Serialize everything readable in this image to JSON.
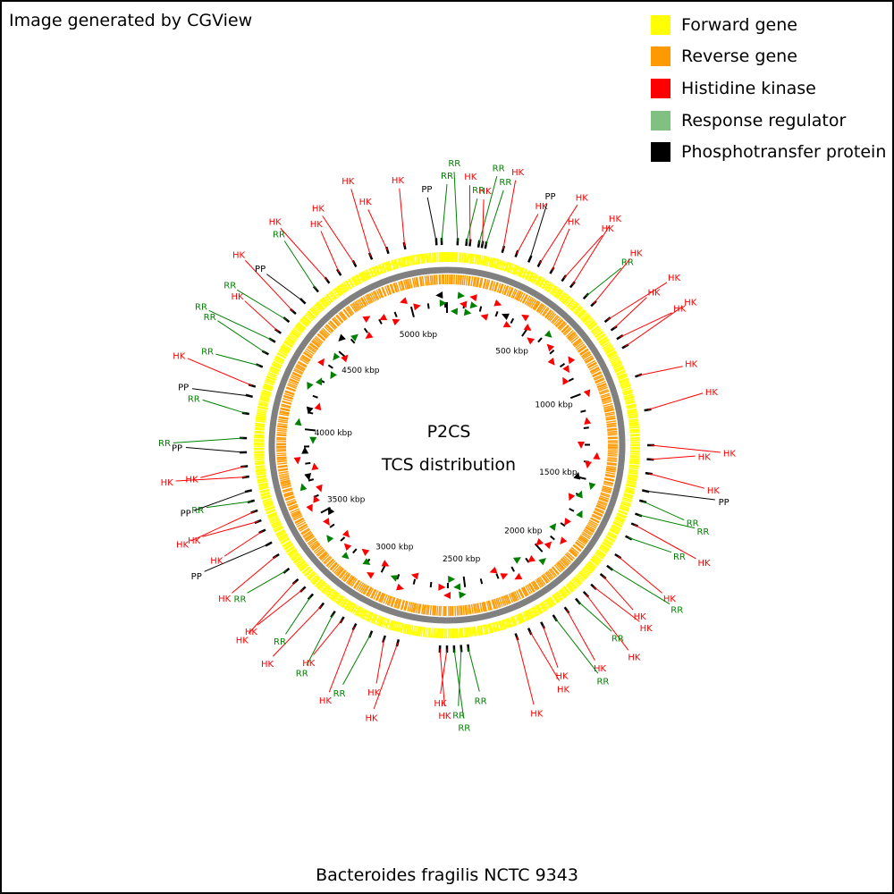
{
  "header": {
    "credit": "Image generated by CGView"
  },
  "legend": {
    "items": [
      {
        "label": "Forward gene",
        "color": "#ffff00"
      },
      {
        "label": "Reverse gene",
        "color": "#ff9900"
      },
      {
        "label": "Histidine kinase",
        "color": "#ff0000"
      },
      {
        "label": "Response regulator",
        "color": "#80c080"
      },
      {
        "label": "Phosphotransfer protein",
        "color": "#000000"
      }
    ]
  },
  "center": {
    "title": "P2CS",
    "subtitle": "TCS distribution"
  },
  "footer": {
    "caption": "Bacteroides fragilis NCTC 9343"
  },
  "colors": {
    "hk": "#ff0000",
    "rr": "#008000",
    "pp": "#000000",
    "backbone": "#808080",
    "forward": "#ffff00",
    "reverse": "#ff9900"
  },
  "map": {
    "genome_length_kbp": 5210,
    "scale_labels": [
      {
        "text": "500 kbp",
        "kbp": 500
      },
      {
        "text": "1000 kbp",
        "kbp": 1000
      },
      {
        "text": "1500 kbp",
        "kbp": 1500
      },
      {
        "text": "2000 kbp",
        "kbp": 2000
      },
      {
        "text": "2500 kbp",
        "kbp": 2500
      },
      {
        "text": "3000 kbp",
        "kbp": 3000
      },
      {
        "text": "3500 kbp",
        "kbp": 3500
      },
      {
        "text": "4000 kbp",
        "kbp": 4000
      },
      {
        "text": "4500 kbp",
        "kbp": 4500
      },
      {
        "text": "5000 kbp",
        "kbp": 5000
      }
    ],
    "features": [
      {
        "label": "PP",
        "type": "pp",
        "angle": -3
      },
      {
        "label": "RR",
        "type": "rr",
        "angle": -1.5
      },
      {
        "label": "RR",
        "type": "rr",
        "angle": 3
      },
      {
        "label": "RR",
        "type": "rr",
        "angle": 5.5
      },
      {
        "label": "HK",
        "type": "hk",
        "angle": 6.5
      },
      {
        "label": "RR",
        "type": "rr",
        "angle": 9
      },
      {
        "label": "HK",
        "type": "hk",
        "angle": 10
      },
      {
        "label": "RR",
        "type": "rr",
        "angle": 11
      },
      {
        "label": "HK",
        "type": "hk",
        "angle": 16
      },
      {
        "label": "HK",
        "type": "hk",
        "angle": 20
      },
      {
        "label": "PP",
        "type": "pp",
        "angle": 24
      },
      {
        "label": "HK",
        "type": "hk",
        "angle": 27
      },
      {
        "label": "HK",
        "type": "hk",
        "angle": 31
      },
      {
        "label": "HK",
        "type": "hk",
        "angle": 35
      },
      {
        "label": "HK",
        "type": "hk",
        "angle": 38
      },
      {
        "label": "RR",
        "type": "rr",
        "angle": 43
      },
      {
        "label": "HK",
        "type": "hk",
        "angle": 46
      },
      {
        "label": "HK",
        "type": "hk",
        "angle": 52
      },
      {
        "label": "HK",
        "type": "hk",
        "angle": 55
      },
      {
        "label": "HK",
        "type": "hk",
        "angle": 58
      },
      {
        "label": "HK",
        "type": "hk",
        "angle": 61
      },
      {
        "label": "HK",
        "type": "hk",
        "angle": 70
      },
      {
        "label": "HK",
        "type": "hk",
        "angle": 80
      },
      {
        "label": "HK",
        "type": "hk",
        "angle": 90
      },
      {
        "label": "HK",
        "type": "hk",
        "angle": 94
      },
      {
        "label": "HK",
        "type": "hk",
        "angle": 98
      },
      {
        "label": "PP",
        "type": "pp",
        "angle": 103
      },
      {
        "label": "RR",
        "type": "rr",
        "angle": 106
      },
      {
        "label": "RR",
        "type": "rr",
        "angle": 110
      },
      {
        "label": "HK",
        "type": "hk",
        "angle": 113
      },
      {
        "label": "RR",
        "type": "rr",
        "angle": 117
      },
      {
        "label": "HK",
        "type": "hk",
        "angle": 123
      },
      {
        "label": "RR",
        "type": "rr",
        "angle": 127
      },
      {
        "label": "HK",
        "type": "hk",
        "angle": 130
      },
      {
        "label": "HK",
        "type": "hk",
        "angle": 134
      },
      {
        "label": "HK",
        "type": "hk",
        "angle": 137
      },
      {
        "label": "RR",
        "type": "rr",
        "angle": 140
      },
      {
        "label": "HK",
        "type": "hk",
        "angle": 144
      },
      {
        "label": "RR",
        "type": "rr",
        "angle": 148
      },
      {
        "label": "HK",
        "type": "hk",
        "angle": 152
      },
      {
        "label": "HK",
        "type": "hk",
        "angle": 156
      },
      {
        "label": "HK",
        "type": "hk",
        "angle": 160
      },
      {
        "label": "RR",
        "type": "rr",
        "angle": 174
      },
      {
        "label": "RR",
        "type": "rr",
        "angle": 176
      },
      {
        "label": "RR",
        "type": "rr",
        "angle": 178
      },
      {
        "label": "HK",
        "type": "hk",
        "angle": 180
      },
      {
        "label": "HK",
        "type": "hk",
        "angle": 182
      },
      {
        "label": "HK",
        "type": "hk",
        "angle": 194
      },
      {
        "label": "HK",
        "type": "hk",
        "angle": 198
      },
      {
        "label": "RR",
        "type": "rr",
        "angle": 202
      },
      {
        "label": "HK",
        "type": "hk",
        "angle": 207
      },
      {
        "label": "HK",
        "type": "hk",
        "angle": 211
      },
      {
        "label": "RR",
        "type": "rr",
        "angle": 214
      },
      {
        "label": "HK",
        "type": "hk",
        "angle": 218
      },
      {
        "label": "RR",
        "type": "rr",
        "angle": 222
      },
      {
        "label": "HK",
        "type": "hk",
        "angle": 225
      },
      {
        "label": "HK",
        "type": "hk",
        "angle": 228
      },
      {
        "label": "RR",
        "type": "rr",
        "angle": 232
      },
      {
        "label": "HK",
        "type": "hk",
        "angle": 237
      },
      {
        "label": "PP",
        "type": "pp",
        "angle": 241
      },
      {
        "label": "HK",
        "type": "hk",
        "angle": 245
      },
      {
        "label": "HK",
        "type": "hk",
        "angle": 248
      },
      {
        "label": "HK",
        "type": "hk",
        "angle": 251
      },
      {
        "label": "RR",
        "type": "rr",
        "angle": 254
      },
      {
        "label": "PP",
        "type": "pp",
        "angle": 257
      },
      {
        "label": "HK",
        "type": "hk",
        "angle": 261
      },
      {
        "label": "HK",
        "type": "hk",
        "angle": 264
      },
      {
        "label": "PP",
        "type": "pp",
        "angle": 268
      },
      {
        "label": "RR",
        "type": "rr",
        "angle": 272
      },
      {
        "label": "RR",
        "type": "rr",
        "angle": 279
      },
      {
        "label": "PP",
        "type": "pp",
        "angle": 284
      },
      {
        "label": "HK",
        "type": "hk",
        "angle": 287
      },
      {
        "label": "RR",
        "type": "rr",
        "angle": 293
      },
      {
        "label": "RR",
        "type": "rr",
        "angle": 297
      },
      {
        "label": "RR",
        "type": "rr",
        "angle": 301
      },
      {
        "label": "HK",
        "type": "hk",
        "angle": 304
      },
      {
        "label": "RR",
        "type": "rr",
        "angle": 308
      },
      {
        "label": "HK",
        "type": "hk",
        "angle": 311
      },
      {
        "label": "PP",
        "type": "pp",
        "angle": 315
      },
      {
        "label": "RR",
        "type": "rr",
        "angle": 320
      },
      {
        "label": "HK",
        "type": "hk",
        "angle": 324
      },
      {
        "label": "HK",
        "type": "hk",
        "angle": 328
      },
      {
        "label": "HK",
        "type": "hk",
        "angle": 333
      },
      {
        "label": "HK",
        "type": "hk",
        "angle": 338
      },
      {
        "label": "HK",
        "type": "hk",
        "angle": 343
      },
      {
        "label": "HK",
        "type": "hk",
        "angle": 348
      }
    ]
  }
}
